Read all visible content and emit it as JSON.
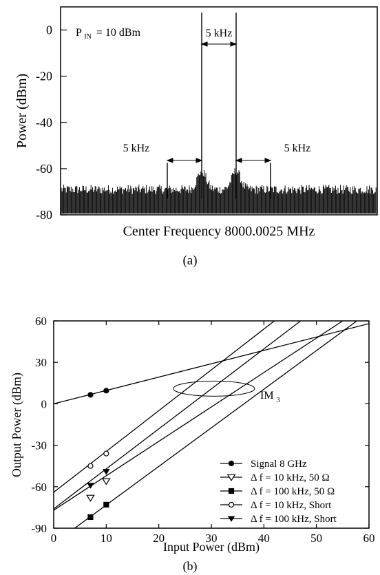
{
  "chart_data": [
    {
      "panel_label": "(a)",
      "type": "line",
      "ylabel": "Power (dBm)",
      "xlabel": "Center Frequency 8000.0025 MHz",
      "ylim": [
        -80,
        10
      ],
      "yticks": [
        0,
        -20,
        -40,
        -60,
        -80
      ],
      "x_span_khz": [
        -23,
        23
      ],
      "noise_floor_dbm": -73,
      "annotations": {
        "pin_main": "P",
        "pin_sub": "IN",
        "pin_rest": "= 10 dBm",
        "spacing_center": "5 kHz",
        "spacing_left": "5 kHz",
        "spacing_right": "5 kHz"
      },
      "peaks": [
        {
          "name": "carrier-1",
          "x_khz": -2.5,
          "power_dbm": 7.5
        },
        {
          "name": "carrier-2",
          "x_khz": 2.5,
          "power_dbm": 7.5
        },
        {
          "name": "im3-lower",
          "x_khz": -7.5,
          "power_dbm": -57.5
        },
        {
          "name": "im3-upper",
          "x_khz": 7.5,
          "power_dbm": -57.5
        }
      ]
    },
    {
      "panel_label": "(b)",
      "type": "line",
      "xlabel": "Input Power (dBm)",
      "ylabel": "Output Power (dBm)",
      "xlim": [
        0,
        60
      ],
      "ylim": [
        -90,
        60
      ],
      "xticks": [
        0,
        10,
        20,
        30,
        40,
        50,
        60
      ],
      "yticks": [
        60,
        30,
        0,
        -30,
        -60,
        -90
      ],
      "annotation": {
        "main": "IM",
        "sub": "3"
      },
      "series": [
        {
          "name": "Signal 8 GHz",
          "marker": "filled-circle",
          "line": {
            "x": [
              0,
              60
            ],
            "y": [
              0,
              58
            ]
          },
          "points": [
            {
              "x": 7,
              "y": 6.5
            },
            {
              "x": 10,
              "y": 9.5
            }
          ]
        },
        {
          "name": "Δ f = 10 kHz, 50 Ω",
          "marker": "open-triangle-down",
          "line": {
            "x": [
              0,
              55
            ],
            "y": [
              -77,
              60
            ]
          },
          "points": [
            {
              "x": 7,
              "y": -68
            },
            {
              "x": 10,
              "y": -56
            }
          ]
        },
        {
          "name": "Δ f = 100 kHz, 50 Ω",
          "marker": "filled-square",
          "line": {
            "x": [
              4,
              57.7
            ],
            "y": [
              -90,
              60
            ]
          },
          "points": [
            {
              "x": 7,
              "y": -82
            },
            {
              "x": 10,
              "y": -73
            }
          ]
        },
        {
          "name": "Δ f = 10 kHz, Short",
          "marker": "open-circle",
          "line": {
            "x": [
              0,
              42
            ],
            "y": [
              -64,
              60
            ]
          },
          "points": [
            {
              "x": 7,
              "y": -45
            },
            {
              "x": 10,
              "y": -36
            }
          ]
        },
        {
          "name": "Δ f = 100 kHz, Short",
          "marker": "filled-triangle-down",
          "line": {
            "x": [
              0,
              47
            ],
            "y": [
              -76,
              60
            ]
          },
          "points": [
            {
              "x": 7,
              "y": -59
            },
            {
              "x": 10,
              "y": -49
            }
          ]
        }
      ],
      "legend_placement": "lower-right"
    }
  ]
}
